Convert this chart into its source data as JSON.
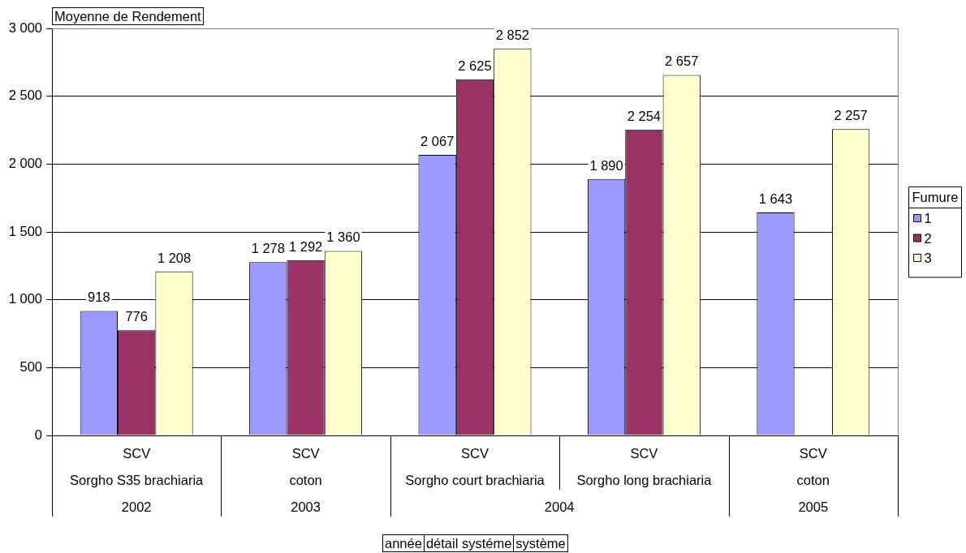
{
  "chart_data": {
    "type": "bar",
    "ylabel": "Moyenne de Rendement",
    "legend_title": "Fumure",
    "categories": [
      [
        "SCV",
        "Sorgho S35 brachiaria",
        "2002"
      ],
      [
        "SCV",
        "coton",
        "2003"
      ],
      [
        "SCV",
        "Sorgho court brachiaria",
        "2004"
      ],
      [
        "SCV",
        "Sorgho long brachiaria",
        null
      ],
      [
        "SCV",
        "coton",
        "2005"
      ]
    ],
    "series": [
      {
        "name": "1",
        "color": "#9999ff",
        "values": [
          918,
          1278,
          2067,
          1890,
          1643
        ],
        "value_labels": [
          "918",
          "1 278",
          "2 067",
          "1 890",
          "1 643"
        ]
      },
      {
        "name": "2",
        "color": "#993366",
        "values": [
          776,
          1292,
          2625,
          2254,
          null
        ],
        "value_labels": [
          "776",
          "1 292",
          "2 625",
          "2 254",
          null
        ]
      },
      {
        "name": "3",
        "color": "#ffffcc",
        "values": [
          1208,
          1360,
          2852,
          2657,
          2257
        ],
        "value_labels": [
          "1 208",
          "1 360",
          "2 852",
          "2 657",
          "2 257"
        ]
      }
    ],
    "ylim": [
      0,
      3000
    ],
    "yticks": [
      0,
      500,
      {
        "value": 1000,
        "label": "1 000"
      },
      {
        "value": 1500,
        "label": "1 500"
      },
      {
        "value": 2000,
        "label": "2 000"
      },
      {
        "value": 2500,
        "label": "2 500"
      },
      {
        "value": 3000,
        "label": "3 000"
      }
    ],
    "grid": "y",
    "legend": "right",
    "annotations": [
      "année",
      "détail systéme",
      "système"
    ]
  }
}
